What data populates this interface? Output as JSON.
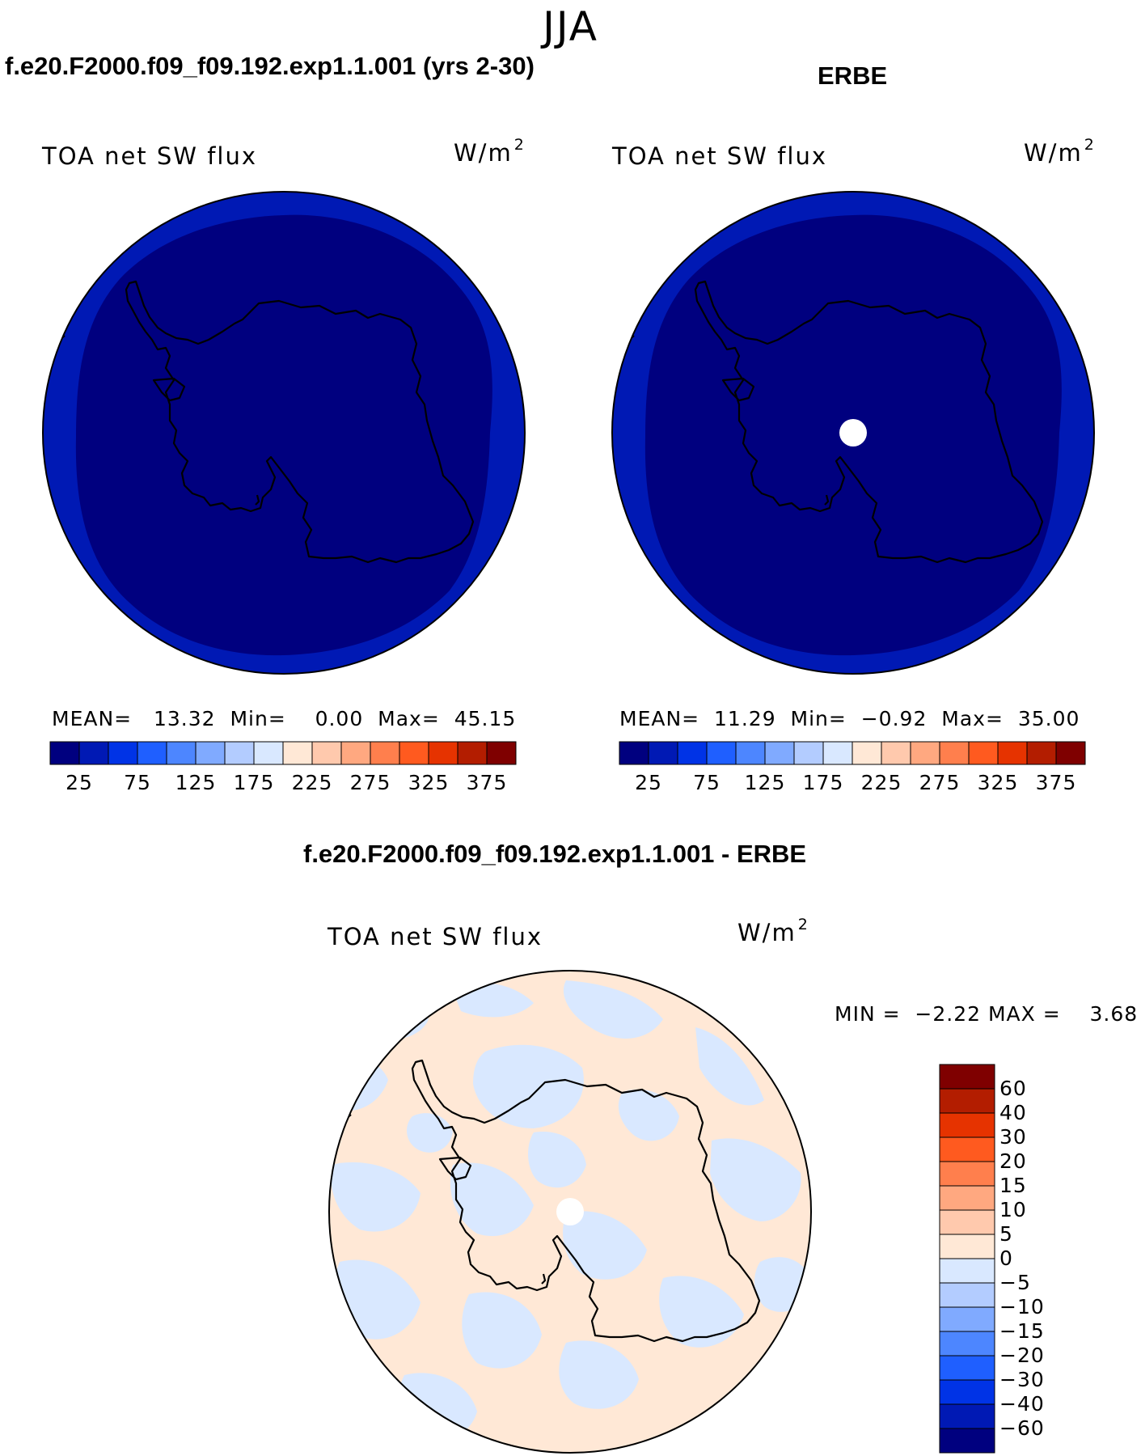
{
  "season": "JJA",
  "panels": [
    {
      "title": "f.e20.F2000.f09_f09.192.exp1.1.001 (yrs 2-30)",
      "variable": "TOA net SW flux",
      "units_base": "W/m",
      "units_exp": "2",
      "stats": {
        "mean_label": "MEAN=",
        "mean": "13.32",
        "min_label": "Min=",
        "min": "0.00",
        "max_label": "Max=",
        "max": "45.15"
      },
      "dominant_interior_level": "0-25",
      "outer_ring_level": "25-50",
      "polar_missing_hole": false
    },
    {
      "title": "ERBE",
      "variable": "TOA net SW flux",
      "units_base": "W/m",
      "units_exp": "2",
      "stats": {
        "mean_label": "MEAN=",
        "mean": "11.29",
        "min_label": "Min=",
        "min": "−0.92",
        "max_label": "Max=",
        "max": "35.00"
      },
      "dominant_interior_level": "0-25",
      "outer_ring_level": "25-50",
      "polar_missing_hole": true
    }
  ],
  "colorbar_horizontal": {
    "labels": [
      "25",
      "75",
      "125",
      "175",
      "225",
      "275",
      "325",
      "375"
    ],
    "colors": [
      "#00007f",
      "#0019b4",
      "#0033e6",
      "#1f5fff",
      "#4d86ff",
      "#80aaff",
      "#b3ccff",
      "#d9e8ff",
      "#ffe8d6",
      "#ffc9ad",
      "#ffa880",
      "#ff7f4d",
      "#ff5a1f",
      "#e63300",
      "#b31d00",
      "#7f0000"
    ]
  },
  "difference": {
    "title": "f.e20.F2000.f09_f09.192.exp1.1.001 - ERBE",
    "variable": "TOA net SW flux",
    "units_base": "W/m",
    "units_exp": "2",
    "minmax": "MIN =  −2.22 MAX =    3.68",
    "background_level": "0 to 5",
    "patch_level": "-5 to 0",
    "polar_missing_hole": true
  },
  "colorbar_vertical": {
    "labels": [
      "60",
      "40",
      "30",
      "20",
      "15",
      "10",
      "5",
      "0",
      "−5",
      "−10",
      "−15",
      "−20",
      "−30",
      "−40",
      "−60"
    ],
    "colors": [
      "#7f0000",
      "#b31d00",
      "#e63300",
      "#ff5a1f",
      "#ff7f4d",
      "#ffa880",
      "#ffc9ad",
      "#ffe8d6",
      "#d9e8ff",
      "#b3ccff",
      "#80aaff",
      "#4d86ff",
      "#1f5fff",
      "#0033e6",
      "#0019b4",
      "#00007f"
    ]
  }
}
